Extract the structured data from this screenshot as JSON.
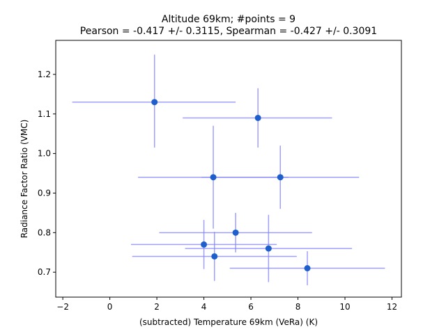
{
  "chart_data": {
    "type": "scatter",
    "title_line1": "Altitude 69km;  #points =  9",
    "title_line2": "Pearson = -0.417 +/-  0.3115, Spearman = -0.427 +/-  0.3091",
    "xlabel": "(subtracted) Temperature 69km (VeRa) (K)",
    "ylabel": "Radiance Factor Ratio (VMC)",
    "xlim": [
      -2.3,
      12.4
    ],
    "ylim": [
      0.637,
      1.286
    ],
    "xticks": [
      -2,
      0,
      2,
      4,
      6,
      8,
      10,
      12
    ],
    "xtick_labels": [
      "−2",
      "0",
      "2",
      "4",
      "6",
      "8",
      "10",
      "12"
    ],
    "yticks": [
      0.7,
      0.8,
      0.9,
      1.0,
      1.1,
      1.2
    ],
    "ytick_labels": [
      "0.7",
      "0.8",
      "0.9",
      "1.0",
      "1.1",
      "1.2"
    ],
    "grid": false,
    "marker_color": "#1f5fcc",
    "errorbar_color": "#7f7fff",
    "points": [
      {
        "x": 1.9,
        "y": 1.13,
        "xerr": [
          3.5,
          3.45
        ],
        "yerr": [
          0.115,
          0.12
        ]
      },
      {
        "x": 6.3,
        "y": 1.09,
        "xerr": [
          3.2,
          3.15
        ],
        "yerr": [
          0.075,
          0.075
        ]
      },
      {
        "x": 4.4,
        "y": 0.94,
        "xerr": [
          3.2,
          3.2
        ],
        "yerr": [
          0.13,
          0.13
        ]
      },
      {
        "x": 7.25,
        "y": 0.94,
        "xerr": [
          3.35,
          3.35
        ],
        "yerr": [
          0.08,
          0.08
        ]
      },
      {
        "x": 5.35,
        "y": 0.8,
        "xerr": [
          3.25,
          3.25
        ],
        "yerr": [
          0.05,
          0.05
        ]
      },
      {
        "x": 4.0,
        "y": 0.77,
        "xerr": [
          3.1,
          3.1
        ],
        "yerr": [
          0.062,
          0.062
        ]
      },
      {
        "x": 6.75,
        "y": 0.76,
        "xerr": [
          3.55,
          3.55
        ],
        "yerr": [
          0.085,
          0.085
        ]
      },
      {
        "x": 4.45,
        "y": 0.74,
        "xerr": [
          3.5,
          3.5
        ],
        "yerr": [
          0.062,
          0.062
        ]
      },
      {
        "x": 8.4,
        "y": 0.71,
        "xerr": [
          3.3,
          3.3
        ],
        "yerr": [
          0.043,
          0.043
        ]
      }
    ]
  }
}
